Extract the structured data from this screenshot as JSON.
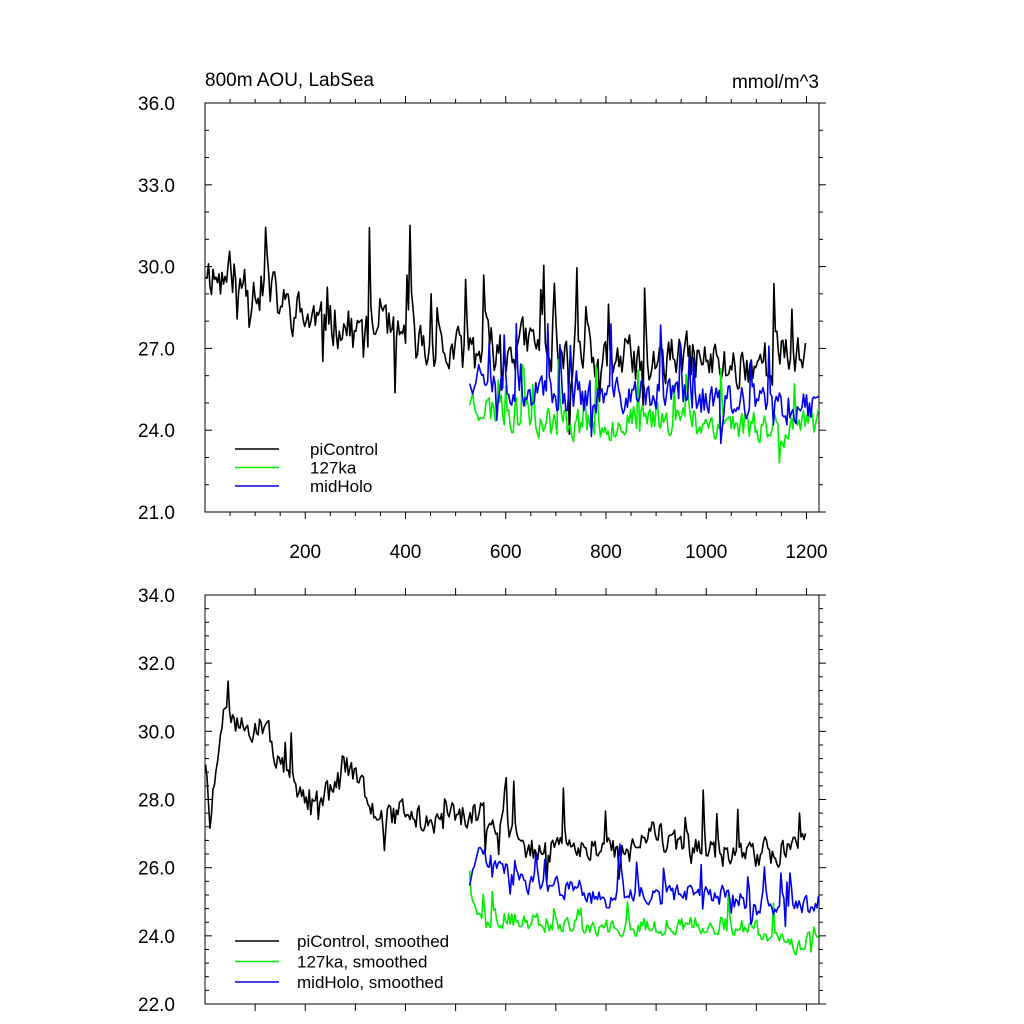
{
  "chart_data": [
    {
      "type": "line",
      "title_left": "800m AOU, LabSea",
      "title_right": "mmol/m^3",
      "xlim": [
        0,
        1225
      ],
      "ylim": [
        21.0,
        36.0
      ],
      "x_tick_values": [
        200,
        400,
        600,
        800,
        1000,
        1200
      ],
      "x_tick_labels": [
        "200",
        "400",
        "600",
        "800",
        "1000",
        "1200"
      ],
      "y_tick_values": [
        21,
        24,
        27,
        30,
        33,
        36
      ],
      "y_tick_labels": [
        "21.0",
        "24.0",
        "27.0",
        "30.0",
        "33.0",
        "36.0"
      ],
      "legend": "bottom-left",
      "series": [
        {
          "name": "piControl",
          "color": "#000000",
          "x_start": 1,
          "x_end": 1200,
          "anchors": [
            [
              1,
              30.0
            ],
            [
              30,
              29.5
            ],
            [
              60,
              29.8
            ],
            [
              100,
              29.3
            ],
            [
              130,
              29.0
            ],
            [
              160,
              28.5
            ],
            [
              200,
              28.1
            ],
            [
              250,
              28.0
            ],
            [
              300,
              27.6
            ],
            [
              350,
              27.6
            ],
            [
              400,
              27.4
            ],
            [
              450,
              26.9
            ],
            [
              500,
              26.8
            ],
            [
              550,
              26.9
            ],
            [
              600,
              27.0
            ],
            [
              650,
              27.2
            ],
            [
              700,
              26.5
            ],
            [
              750,
              26.4
            ],
            [
              800,
              26.6
            ],
            [
              850,
              26.5
            ],
            [
              900,
              26.4
            ],
            [
              950,
              26.7
            ],
            [
              1000,
              26.5
            ],
            [
              1050,
              26.3
            ],
            [
              1100,
              26.5
            ],
            [
              1150,
              26.6
            ],
            [
              1200,
              26.6
            ]
          ],
          "noise": 1.2,
          "seed": 11
        },
        {
          "name": "127ka",
          "color": "#00ee00",
          "x_start": 528,
          "x_end": 1225,
          "anchors": [
            [
              528,
              25.2
            ],
            [
              560,
              24.8
            ],
            [
              600,
              24.6
            ],
            [
              700,
              24.3
            ],
            [
              800,
              24.2
            ],
            [
              900,
              24.5
            ],
            [
              1000,
              24.3
            ],
            [
              1100,
              24.2
            ],
            [
              1200,
              24.0
            ],
            [
              1225,
              24.2
            ]
          ],
          "noise": 0.85,
          "seed": 23
        },
        {
          "name": "midHolo",
          "color": "#0000ee",
          "x_start": 528,
          "x_end": 1225,
          "anchors": [
            [
              528,
              26.0
            ],
            [
              560,
              26.2
            ],
            [
              600,
              25.6
            ],
            [
              700,
              25.2
            ],
            [
              800,
              25.2
            ],
            [
              900,
              25.3
            ],
            [
              1000,
              25.1
            ],
            [
              1100,
              24.9
            ],
            [
              1200,
              24.9
            ],
            [
              1225,
              25.0
            ]
          ],
          "noise": 0.9,
          "seed": 37
        }
      ]
    },
    {
      "type": "line",
      "xlim": [
        0,
        1225
      ],
      "ylim": [
        22.0,
        34.0
      ],
      "x_tick_values": [
        100,
        200,
        300,
        400,
        500,
        600,
        700,
        800,
        900,
        1000,
        1100,
        1200
      ],
      "y_tick_values": [
        22,
        24,
        26,
        28,
        30,
        32,
        34
      ],
      "y_tick_labels": [
        "22.0",
        "24.0",
        "26.0",
        "28.0",
        "30.0",
        "32.0",
        "34.0"
      ],
      "legend": "bottom-left",
      "series": [
        {
          "name": "piControl, smoothed",
          "color": "#000000",
          "x_start": 1,
          "x_end": 1200,
          "anchors": [
            [
              1,
              29.2
            ],
            [
              10,
              27.3
            ],
            [
              20,
              28.5
            ],
            [
              30,
              29.6
            ],
            [
              40,
              30.5
            ],
            [
              55,
              30.3
            ],
            [
              80,
              30.0
            ],
            [
              100,
              30.2
            ],
            [
              130,
              29.8
            ],
            [
              160,
              28.6
            ],
            [
              180,
              28.0
            ],
            [
              200,
              28.0
            ],
            [
              250,
              28.2
            ],
            [
              290,
              29.0
            ],
            [
              320,
              28.3
            ],
            [
              350,
              27.4
            ],
            [
              400,
              27.7
            ],
            [
              450,
              27.2
            ],
            [
              500,
              27.5
            ],
            [
              550,
              27.5
            ],
            [
              600,
              27.3
            ],
            [
              650,
              26.5
            ],
            [
              700,
              26.6
            ],
            [
              750,
              26.6
            ],
            [
              800,
              26.6
            ],
            [
              850,
              26.5
            ],
            [
              900,
              27.0
            ],
            [
              950,
              26.5
            ],
            [
              1000,
              26.5
            ],
            [
              1050,
              26.3
            ],
            [
              1100,
              26.4
            ],
            [
              1150,
              26.5
            ],
            [
              1200,
              26.9
            ]
          ],
          "noise": 0.55,
          "seed": 51
        },
        {
          "name": "127ka, smoothed",
          "color": "#00ee00",
          "x_start": 528,
          "x_end": 1225,
          "anchors": [
            [
              528,
              25.0
            ],
            [
              560,
              24.6
            ],
            [
              600,
              24.5
            ],
            [
              700,
              24.3
            ],
            [
              800,
              24.2
            ],
            [
              900,
              24.3
            ],
            [
              1000,
              24.4
            ],
            [
              1100,
              24.2
            ],
            [
              1180,
              23.6
            ],
            [
              1225,
              24.3
            ]
          ],
          "noise": 0.38,
          "seed": 63
        },
        {
          "name": "midHolo, smoothed",
          "color": "#0000ee",
          "x_start": 528,
          "x_end": 1225,
          "anchors": [
            [
              528,
              25.6
            ],
            [
              550,
              26.5
            ],
            [
              580,
              26.2
            ],
            [
              620,
              25.6
            ],
            [
              700,
              25.4
            ],
            [
              800,
              25.1
            ],
            [
              900,
              25.2
            ],
            [
              1000,
              25.3
            ],
            [
              1100,
              24.9
            ],
            [
              1200,
              24.8
            ],
            [
              1225,
              25.0
            ]
          ],
          "noise": 0.42,
          "seed": 77
        }
      ]
    }
  ]
}
